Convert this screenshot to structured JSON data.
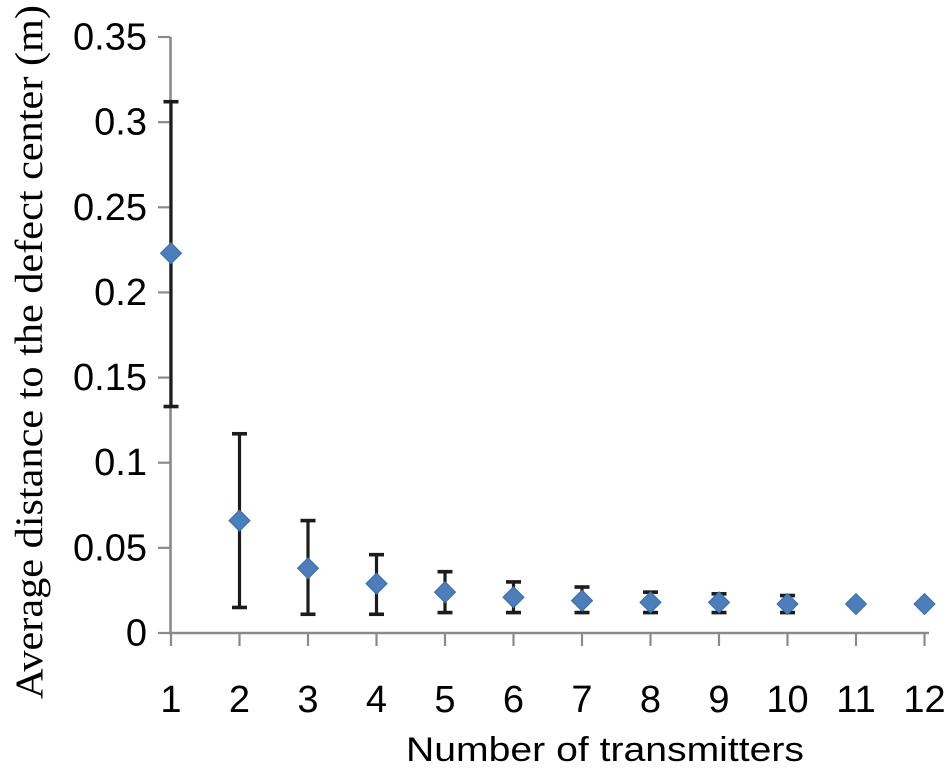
{
  "figure": {
    "background": "#ffffff"
  },
  "chart_data": {
    "type": "scatter",
    "title": "",
    "xlabel": "Number of transmitters",
    "ylabel": "Average distance to the defect center (m)",
    "x_categories": [
      "1",
      "2",
      "3",
      "4",
      "5",
      "6",
      "7",
      "8",
      "9",
      "10",
      "11",
      "12"
    ],
    "series": [
      {
        "name": "average-distance-to-defect-center",
        "x": [
          1,
          2,
          3,
          4,
          5,
          6,
          7,
          8,
          9,
          10,
          11,
          12
        ],
        "y": [
          0.223,
          0.066,
          0.038,
          0.029,
          0.024,
          0.021,
          0.019,
          0.018,
          0.018,
          0.017,
          0.017,
          0.017
        ],
        "error_bar_bottom": [
          0.133,
          0.015,
          0.011,
          0.011,
          0.012,
          0.012,
          0.012,
          0.012,
          0.012,
          0.012,
          null,
          null
        ],
        "error_bar_top": [
          0.312,
          0.117,
          0.066,
          0.046,
          0.036,
          0.03,
          0.027,
          0.024,
          0.023,
          0.022,
          null,
          null
        ],
        "marker": "diamond",
        "marker_color": "#4C7EBB",
        "marker_edge_color": "#3B6CA5"
      }
    ],
    "xlim": [
      1,
      12
    ],
    "ylim": [
      0,
      0.35
    ],
    "ytick_values": [
      0,
      0.05,
      0.1,
      0.15,
      0.2,
      0.25,
      0.3,
      0.35
    ],
    "ytick_labels": [
      "0",
      "0.05",
      "0.1",
      "0.15",
      "0.2",
      "0.25",
      "0.3",
      "0.35"
    ],
    "grid": false,
    "legend": false,
    "axis_color": "#8A8A8A",
    "error_bar_color": "#1C1C1C",
    "text_color": "#000000"
  }
}
